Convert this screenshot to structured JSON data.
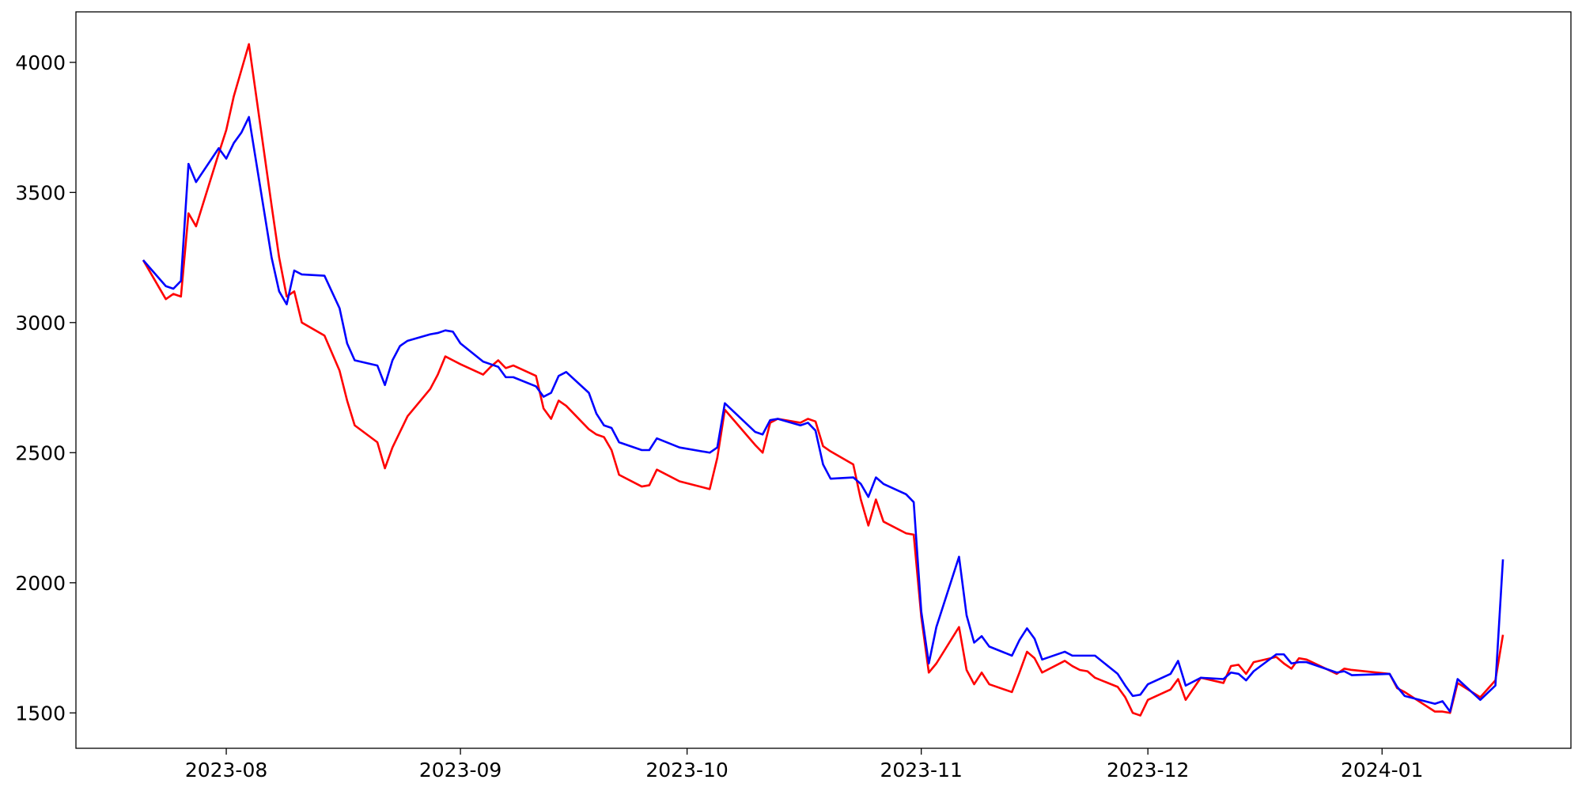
{
  "chart_data": {
    "type": "line",
    "x": [
      -11,
      -8,
      -7,
      -6,
      -5,
      -4,
      -1,
      0,
      1,
      2,
      3,
      6,
      7,
      8,
      9,
      10,
      13,
      15,
      16,
      17,
      20,
      21,
      22,
      23,
      24,
      27,
      28,
      29,
      30,
      31,
      34,
      35,
      36,
      37,
      38,
      41,
      42,
      43,
      44,
      45,
      48,
      49,
      50,
      51,
      52,
      55,
      56,
      57,
      60,
      64,
      65,
      66,
      70,
      71,
      72,
      73,
      76,
      77,
      78,
      79,
      80,
      83,
      84,
      85,
      86,
      87,
      90,
      91,
      92,
      93,
      94,
      97,
      98,
      99,
      100,
      101,
      104,
      105,
      106,
      107,
      108,
      111,
      112,
      113,
      114,
      115,
      118,
      119,
      120,
      121,
      122,
      125,
      126,
      127,
      129,
      132,
      133,
      134,
      135,
      136,
      139,
      140,
      141,
      142,
      143,
      147,
      148,
      149,
      154,
      155,
      156,
      160,
      161,
      162,
      163,
      166,
      168,
      169
    ],
    "series": [
      {
        "color": "#ff0000",
        "values": [
          3240,
          3090,
          3110,
          3100,
          3420,
          3370,
          3650,
          3740,
          3870,
          3970,
          4070,
          3450,
          3250,
          3100,
          3120,
          3000,
          2950,
          2815,
          2700,
          2605,
          2540,
          2440,
          2520,
          2580,
          2640,
          2745,
          2800,
          2870,
          2855,
          2840,
          2800,
          2830,
          2855,
          2825,
          2835,
          2795,
          2670,
          2630,
          2700,
          2680,
          2590,
          2570,
          2560,
          2510,
          2415,
          2370,
          2375,
          2435,
          2390,
          2360,
          2480,
          2665,
          2530,
          2500,
          2615,
          2630,
          2615,
          2630,
          2620,
          2525,
          2505,
          2455,
          2320,
          2220,
          2320,
          2235,
          2190,
          2185,
          1870,
          1655,
          1690,
          1830,
          1665,
          1610,
          1655,
          1610,
          1580,
          1655,
          1735,
          1710,
          1655,
          1700,
          1680,
          1665,
          1660,
          1635,
          1600,
          1560,
          1500,
          1490,
          1550,
          1590,
          1630,
          1550,
          1635,
          1615,
          1680,
          1685,
          1650,
          1695,
          1715,
          1690,
          1670,
          1710,
          1705,
          1650,
          1670,
          1665,
          1650,
          1595,
          1580,
          1505,
          1505,
          1500,
          1615,
          1560,
          1625,
          1800
        ]
      },
      {
        "color": "#0000ff",
        "values": [
          3240,
          3140,
          3130,
          3160,
          3610,
          3540,
          3670,
          3630,
          3690,
          3730,
          3790,
          3250,
          3120,
          3070,
          3200,
          3185,
          3180,
          3055,
          2920,
          2855,
          2835,
          2760,
          2855,
          2910,
          2930,
          2955,
          2960,
          2970,
          2965,
          2920,
          2850,
          2840,
          2830,
          2790,
          2790,
          2755,
          2715,
          2730,
          2795,
          2810,
          2730,
          2650,
          2605,
          2595,
          2540,
          2510,
          2510,
          2555,
          2520,
          2500,
          2520,
          2690,
          2580,
          2570,
          2625,
          2630,
          2605,
          2615,
          2585,
          2455,
          2400,
          2405,
          2380,
          2330,
          2405,
          2380,
          2340,
          2310,
          1890,
          1690,
          1830,
          2100,
          1875,
          1770,
          1795,
          1755,
          1720,
          1780,
          1825,
          1785,
          1705,
          1735,
          1720,
          1720,
          1720,
          1720,
          1650,
          1605,
          1565,
          1570,
          1610,
          1650,
          1700,
          1605,
          1635,
          1630,
          1655,
          1650,
          1625,
          1660,
          1725,
          1725,
          1690,
          1695,
          1695,
          1655,
          1660,
          1645,
          1650,
          1600,
          1565,
          1535,
          1545,
          1505,
          1630,
          1550,
          1605,
          2090
        ]
      }
    ],
    "xlim": [
      -19.9,
      178
    ],
    "xticks": [
      {
        "value": 0,
        "label": "2023-08"
      },
      {
        "value": 31,
        "label": "2023-09"
      },
      {
        "value": 61,
        "label": "2023-10"
      },
      {
        "value": 92,
        "label": "2023-11"
      },
      {
        "value": 122,
        "label": "2023-12"
      },
      {
        "value": 153,
        "label": "2024-01"
      }
    ],
    "ylim": [
      1364,
      4194
    ],
    "yticks": [
      1500,
      2000,
      2500,
      3000,
      3500,
      4000
    ]
  }
}
